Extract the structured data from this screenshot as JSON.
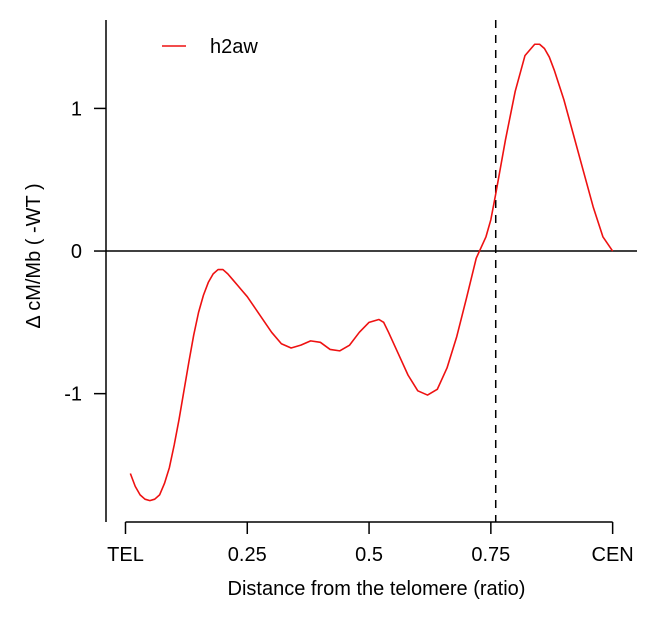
{
  "chart_data": {
    "type": "line",
    "title": "",
    "xlabel": "Distance from the telomere (ratio)",
    "ylabel": "Δ  cM/Mb ( -WT )",
    "xlim": [
      -0.04,
      1.05
    ],
    "ylim": [
      -1.9,
      1.62
    ],
    "x_ticks": [
      {
        "value": 0,
        "label": "TEL"
      },
      {
        "value": 0.25,
        "label": "0.25"
      },
      {
        "value": 0.5,
        "label": "0.5"
      },
      {
        "value": 0.75,
        "label": "0.75"
      },
      {
        "value": 1.0,
        "label": "CEN"
      }
    ],
    "y_ticks": [
      {
        "value": -1,
        "label": "-1"
      },
      {
        "value": 0,
        "label": "0"
      },
      {
        "value": 1,
        "label": "1"
      }
    ],
    "reference_lines": {
      "horizontal_y": 0,
      "vertical_dashed_x": 0.76
    },
    "legend": {
      "position": "top-left"
    },
    "colors": {
      "series": "#ee1111",
      "axis": "#000000"
    },
    "series": [
      {
        "name": "h2aw",
        "x": [
          0.01,
          0.02,
          0.03,
          0.04,
          0.05,
          0.06,
          0.07,
          0.08,
          0.09,
          0.1,
          0.11,
          0.12,
          0.13,
          0.14,
          0.15,
          0.16,
          0.17,
          0.18,
          0.19,
          0.2,
          0.21,
          0.22,
          0.23,
          0.24,
          0.25,
          0.26,
          0.27,
          0.28,
          0.29,
          0.3,
          0.32,
          0.34,
          0.36,
          0.38,
          0.4,
          0.42,
          0.44,
          0.46,
          0.48,
          0.5,
          0.52,
          0.53,
          0.54,
          0.56,
          0.58,
          0.6,
          0.62,
          0.64,
          0.66,
          0.68,
          0.7,
          0.72,
          0.74,
          0.75,
          0.76,
          0.78,
          0.8,
          0.82,
          0.84,
          0.85,
          0.86,
          0.87,
          0.88,
          0.9,
          0.92,
          0.94,
          0.96,
          0.98,
          1.0
        ],
        "values": [
          -1.56,
          -1.65,
          -1.71,
          -1.74,
          -1.75,
          -1.74,
          -1.71,
          -1.63,
          -1.52,
          -1.36,
          -1.18,
          -0.98,
          -0.78,
          -0.59,
          -0.43,
          -0.31,
          -0.22,
          -0.16,
          -0.13,
          -0.13,
          -0.16,
          -0.2,
          -0.24,
          -0.28,
          -0.32,
          -0.37,
          -0.42,
          -0.47,
          -0.52,
          -0.57,
          -0.65,
          -0.68,
          -0.66,
          -0.63,
          -0.64,
          -0.69,
          -0.7,
          -0.66,
          -0.57,
          -0.5,
          -0.48,
          -0.5,
          -0.57,
          -0.72,
          -0.87,
          -0.98,
          -1.01,
          -0.97,
          -0.82,
          -0.6,
          -0.33,
          -0.05,
          0.1,
          0.22,
          0.4,
          0.78,
          1.12,
          1.37,
          1.45,
          1.45,
          1.42,
          1.36,
          1.27,
          1.06,
          0.81,
          0.56,
          0.31,
          0.1,
          0.0
        ]
      }
    ]
  }
}
